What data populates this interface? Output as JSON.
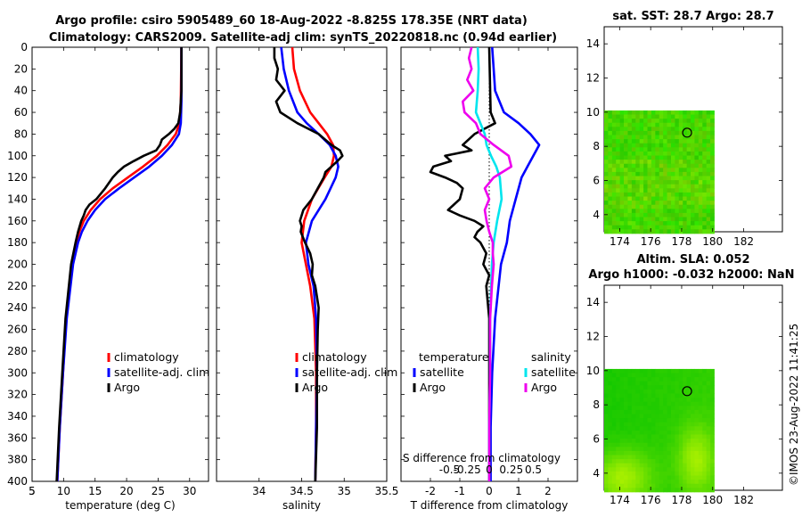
{
  "title_line1": "Argo profile: csiro 5905489_60 18-Aug-2022 -8.825S 178.35E (NRT data)",
  "title_line2": "Climatology: CARS2009. Satellite-adj clim: synTS_20220818.nc (0.94d earlier)",
  "footer_text": "©IMOS 23-Aug-2022 11:41:25",
  "colors": {
    "climatology": "#ff0000",
    "satellite": "#0000ff",
    "argo": "#000000",
    "sat_salinity": "#00e5ee",
    "argo_salinity": "#ee00ee"
  },
  "chart_data": [
    {
      "id": "temperature",
      "type": "line",
      "xlabel": "temperature (deg C)",
      "ylabel": "",
      "xlim": [
        5,
        33
      ],
      "ylim": [
        0,
        400
      ],
      "xticks": [
        5,
        10,
        15,
        20,
        25,
        30
      ],
      "yticks": [
        0,
        20,
        40,
        60,
        80,
        100,
        120,
        140,
        160,
        180,
        200,
        220,
        240,
        260,
        280,
        300,
        320,
        340,
        360,
        380,
        400
      ],
      "legend": [
        "climatology",
        "satellite-adj. clim",
        "Argo"
      ],
      "legend_position": "center-right",
      "series": [
        {
          "name": "climatology",
          "color": "#ff0000",
          "depth": [
            0,
            50,
            70,
            80,
            90,
            100,
            110,
            120,
            130,
            140,
            150,
            160,
            170,
            180,
            200,
            250,
            300,
            350,
            400
          ],
          "values": [
            28.7,
            28.6,
            28.4,
            27.8,
            26.5,
            24.8,
            22.6,
            20.2,
            17.8,
            15.8,
            14.3,
            13.2,
            12.5,
            12.0,
            11.3,
            10.4,
            9.9,
            9.4,
            9.0
          ]
        },
        {
          "name": "satellite-adj. clim",
          "color": "#0000ff",
          "depth": [
            0,
            50,
            70,
            80,
            90,
            100,
            110,
            120,
            130,
            140,
            150,
            160,
            170,
            180,
            200,
            250,
            300,
            350,
            400
          ],
          "values": [
            28.7,
            28.7,
            28.6,
            28.3,
            27.2,
            25.6,
            23.6,
            21.2,
            18.8,
            16.6,
            15.0,
            13.8,
            12.9,
            12.3,
            11.5,
            10.5,
            9.9,
            9.4,
            9.0
          ]
        },
        {
          "name": "Argo",
          "color": "#000000",
          "depth": [
            0,
            40,
            60,
            70,
            75,
            80,
            85,
            90,
            95,
            100,
            105,
            110,
            115,
            120,
            130,
            140,
            145,
            150,
            155,
            160,
            170,
            180,
            200,
            250,
            300,
            350,
            400
          ],
          "values": [
            28.7,
            28.7,
            28.5,
            28.2,
            27.6,
            26.7,
            25.6,
            25.3,
            24.7,
            22.7,
            21.1,
            19.6,
            18.6,
            17.8,
            16.6,
            15.2,
            14.1,
            13.5,
            13.2,
            12.8,
            12.3,
            11.9,
            11.2,
            10.3,
            9.8,
            9.3,
            8.9
          ]
        }
      ]
    },
    {
      "id": "salinity",
      "type": "line",
      "xlabel": "salinity",
      "xlim": [
        33.5,
        35.5
      ],
      "ylim": [
        0,
        400
      ],
      "xticks": [
        34,
        34.5,
        35,
        35.5
      ],
      "legend": [
        "climatology",
        "satellite-adj. clim",
        "Argo"
      ],
      "legend_position": "center-right",
      "series": [
        {
          "name": "climatology",
          "color": "#ff0000",
          "depth": [
            0,
            20,
            40,
            60,
            70,
            80,
            90,
            100,
            110,
            120,
            140,
            160,
            180,
            200,
            220,
            250,
            300,
            350,
            400
          ],
          "values": [
            34.39,
            34.41,
            34.48,
            34.6,
            34.7,
            34.8,
            34.87,
            34.88,
            34.85,
            34.77,
            34.62,
            34.53,
            34.5,
            34.55,
            34.6,
            34.65,
            34.67,
            34.67,
            34.66
          ]
        },
        {
          "name": "satellite-adj. clim",
          "color": "#0000ff",
          "depth": [
            0,
            20,
            40,
            60,
            70,
            80,
            90,
            100,
            110,
            120,
            140,
            160,
            180,
            200,
            220,
            250,
            300,
            350,
            400
          ],
          "values": [
            34.26,
            34.29,
            34.35,
            34.45,
            34.56,
            34.7,
            34.83,
            34.9,
            34.93,
            34.9,
            34.78,
            34.62,
            34.55,
            34.58,
            34.64,
            34.67,
            34.68,
            34.67,
            34.66
          ]
        },
        {
          "name": "Argo",
          "color": "#000000",
          "depth": [
            0,
            10,
            20,
            30,
            40,
            50,
            60,
            70,
            80,
            90,
            95,
            100,
            105,
            110,
            115,
            120,
            130,
            140,
            150,
            160,
            165,
            170,
            180,
            190,
            200,
            210,
            220,
            240,
            260,
            300,
            350,
            400
          ],
          "values": [
            34.18,
            34.18,
            34.22,
            34.2,
            34.3,
            34.2,
            34.25,
            34.45,
            34.7,
            34.85,
            34.95,
            34.98,
            34.92,
            34.85,
            34.78,
            34.76,
            34.69,
            34.62,
            34.52,
            34.48,
            34.5,
            34.49,
            34.54,
            34.6,
            34.63,
            34.62,
            34.66,
            34.7,
            34.69,
            34.68,
            34.68,
            34.66
          ]
        }
      ]
    },
    {
      "id": "differences",
      "type": "line",
      "xlabel": "T difference from climatology",
      "xlabel_top": "S difference from climatology",
      "xlim": [
        -3,
        3
      ],
      "ylim": [
        0,
        400
      ],
      "xticks": [
        -2,
        -1,
        0,
        1,
        2
      ],
      "xtick_labels": [
        "-2",
        "-1",
        "0",
        "1",
        "2"
      ],
      "s_ticks": [
        "-0.5",
        "-0.25",
        "0",
        "0.25",
        "0.5"
      ],
      "s_xlim": [
        -1,
        1
      ],
      "legend_left_title": "temperature",
      "legend_right_title": "salinity",
      "legend_left": [
        "satellite",
        "Argo"
      ],
      "legend_right": [
        "satellite",
        "Argo"
      ],
      "series": [
        {
          "name": "temperature satellite",
          "color": "#0000ff",
          "depth": [
            0,
            20,
            40,
            60,
            70,
            80,
            90,
            100,
            110,
            120,
            140,
            160,
            180,
            200,
            250,
            300,
            350,
            400
          ],
          "values": [
            0.1,
            0.15,
            0.2,
            0.5,
            1.0,
            1.4,
            1.7,
            1.5,
            1.3,
            1.1,
            0.9,
            0.7,
            0.6,
            0.4,
            0.2,
            0.1,
            0.05,
            0.05
          ]
        },
        {
          "name": "temperature Argo",
          "color": "#000000",
          "depth": [
            0,
            60,
            70,
            80,
            90,
            95,
            100,
            105,
            110,
            115,
            120,
            125,
            130,
            140,
            145,
            150,
            155,
            160,
            165,
            170,
            175,
            180,
            190,
            200,
            210,
            220,
            250,
            300,
            350,
            400
          ],
          "values": [
            0.0,
            0.05,
            0.2,
            -0.5,
            -0.9,
            -0.6,
            -1.5,
            -1.3,
            -1.9,
            -2.0,
            -1.5,
            -1.1,
            -0.9,
            -1.0,
            -1.2,
            -1.4,
            -1.0,
            -0.5,
            -0.2,
            -0.4,
            -0.5,
            -0.3,
            -0.1,
            -0.2,
            0.0,
            -0.1,
            0.0,
            0.0,
            0.0,
            0.0
          ]
        },
        {
          "name": "salinity satellite",
          "color": "#00e5ee",
          "depth": [
            0,
            20,
            40,
            60,
            70,
            80,
            90,
            100,
            110,
            120,
            140,
            160,
            180,
            200,
            250,
            300,
            350,
            400
          ],
          "values": [
            -0.13,
            -0.12,
            -0.13,
            -0.15,
            -0.1,
            -0.05,
            -0.03,
            0.02,
            0.08,
            0.12,
            0.14,
            0.09,
            0.05,
            0.03,
            0.01,
            0.01,
            0.0,
            0.0
          ]
        },
        {
          "name": "salinity Argo",
          "color": "#ee00ee",
          "depth": [
            0,
            10,
            20,
            30,
            40,
            50,
            60,
            70,
            80,
            90,
            100,
            110,
            120,
            130,
            140,
            150,
            160,
            170,
            180,
            190,
            200,
            220,
            250,
            300,
            350,
            400
          ],
          "values": [
            -0.2,
            -0.23,
            -0.2,
            -0.25,
            -0.18,
            -0.3,
            -0.28,
            -0.15,
            -0.1,
            0.05,
            0.22,
            0.25,
            0.05,
            -0.05,
            0.0,
            -0.05,
            -0.03,
            0.0,
            0.04,
            0.04,
            0.05,
            0.03,
            0.01,
            0.01,
            0.0,
            0.0
          ]
        }
      ]
    },
    {
      "id": "sst_map",
      "type": "heatmap",
      "title": "sat. SST: 28.7 Argo: 28.7",
      "xlim": [
        173,
        184.5
      ],
      "ylim": [
        3,
        15
      ],
      "xticks": [
        174,
        176,
        178,
        180,
        182
      ],
      "yticks": [
        4,
        6,
        8,
        10,
        12,
        14
      ],
      "data_extent": {
        "lon": [
          173,
          180.1
        ],
        "lat": [
          2.9,
          10.1
        ]
      },
      "argo_marker": {
        "lon": 178.35,
        "lat": 8.8
      }
    },
    {
      "id": "sla_map",
      "type": "heatmap",
      "title_line1": "Altim. SLA: 0.052",
      "title_line2": "Argo h1000: -0.032 h2000: NaN",
      "xlim": [
        173,
        184.5
      ],
      "ylim": [
        3,
        15
      ],
      "xticks": [
        174,
        176,
        178,
        180,
        182
      ],
      "yticks": [
        4,
        6,
        8,
        10,
        12,
        14
      ],
      "data_extent": {
        "lon": [
          173,
          180.1
        ],
        "lat": [
          2.9,
          10.1
        ]
      },
      "argo_marker": {
        "lon": 178.35,
        "lat": 8.8
      }
    }
  ]
}
